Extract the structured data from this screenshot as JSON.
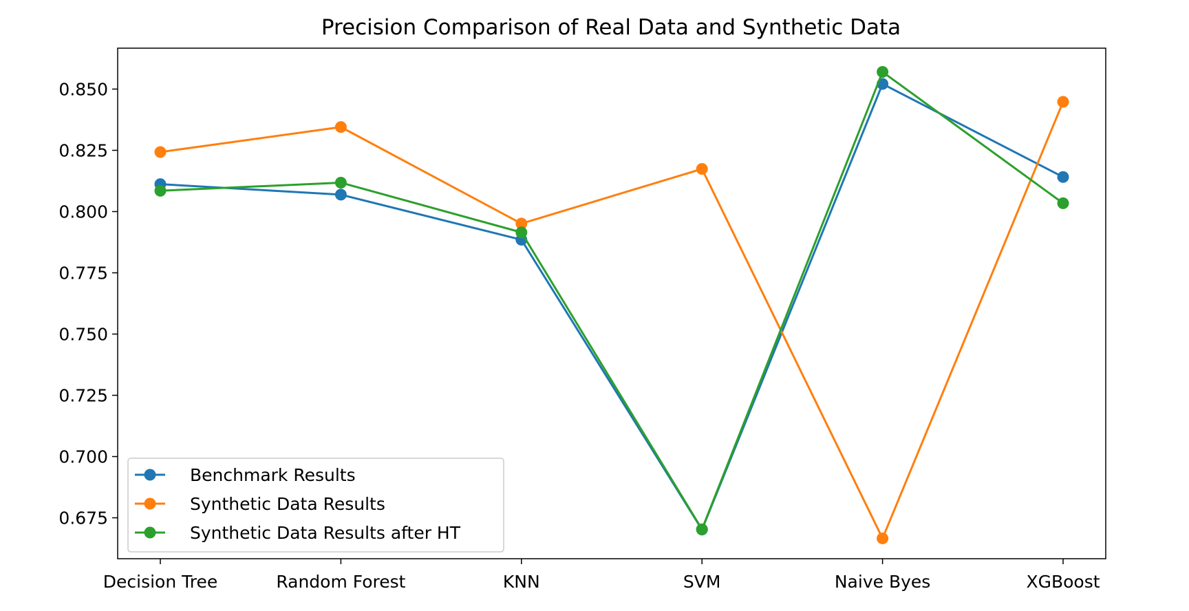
{
  "chart_data": {
    "type": "line",
    "title": "Precision Comparison of Real Data and Synthetic Data",
    "xlabel": "",
    "ylabel": "",
    "categories": [
      "Decision Tree",
      "Random Forest",
      "KNN",
      "SVM",
      "Naive Byes",
      "XGBoost"
    ],
    "ylim": [
      0.6583,
      0.8667
    ],
    "yticks": [
      0.675,
      0.7,
      0.725,
      0.75,
      0.775,
      0.8,
      0.825,
      0.85
    ],
    "ytick_labels": [
      "0.675",
      "0.700",
      "0.725",
      "0.750",
      "0.775",
      "0.800",
      "0.825",
      "0.850"
    ],
    "grid": false,
    "legend_position": "lower-left",
    "series": [
      {
        "name": "Benchmark Results",
        "color": "#1f77b4",
        "values": [
          0.8112,
          0.8069,
          0.7885,
          0.6702,
          0.8521,
          0.8141
        ]
      },
      {
        "name": "Synthetic Data Results",
        "color": "#ff7f0e",
        "values": [
          0.8243,
          0.8345,
          0.7951,
          0.8174,
          0.6666,
          0.8448
        ]
      },
      {
        "name": "Synthetic Data Results after HT",
        "color": "#2ca02c",
        "values": [
          0.8085,
          0.8118,
          0.7915,
          0.6703,
          0.857,
          0.8034
        ]
      }
    ]
  }
}
